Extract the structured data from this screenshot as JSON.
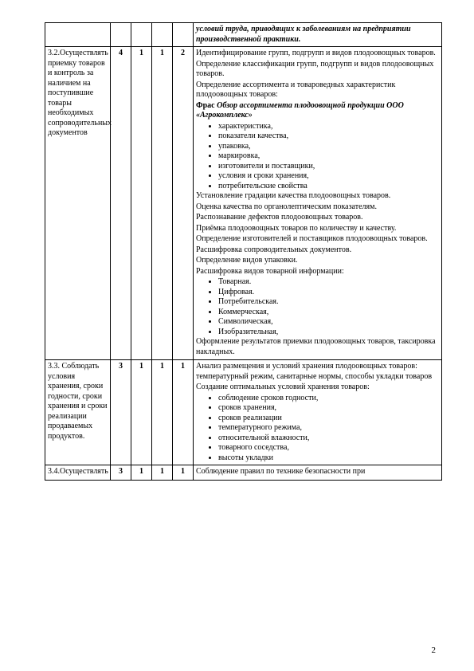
{
  "page_number": "2",
  "row0": {
    "col6_italic": "условий труда, приводящих к заболеваниям на предприятии производственной практики."
  },
  "row1": {
    "col1": "3.2.Осуществлять приемку товаров и контроль за наличием на поступившие товары необходимых сопроводительных документов",
    "col2": "4",
    "col3": "1",
    "col4": "1",
    "col5": "2",
    "p1": "Идентифицирование групп, подгрупп и видов плодоовощных  товаров.",
    "p2": "Определение классификации групп, подгрупп и видов плодоовощных  товаров.",
    "p3": "Определение ассортимента и товароведных характеристик плодоовощных  товаров:",
    "p4a_bold": "Фрас ",
    "p4b_italic": "Обзор ассортимента  плодоовощной продукции ООО «Агрокомплекс»",
    "b1": "характеристика,",
    "b2": "показатели качества,",
    "b3": "упаковка,",
    "b4": "маркировка,",
    "b5": " изготовители и поставщики,",
    "b6": "условия и сроки хранения,",
    "b7": " потребительские свойства",
    "p5": "Установление градации качества плодоовощных товаров.",
    "p6": "Оценка качества по органолептическим показателям.",
    "p7": "Распознавание дефектов плодоовощных товаров.",
    "p8": "Приёмка плодоовощных  товаров по количеству и качеству.",
    "p9": "Определение изготовителей и поставщиков плодоовощных  товаров.",
    "p10": "Расшифровка сопроводительных документов.",
    "p11": "Определение видов упаковки.",
    "p12": " Расшифровка видов товарной информации:",
    "c1": "Товарная.",
    "c2": "Цифровая.",
    "c3": "Потребительская.",
    "c4": "Коммерческая,",
    "c5": "Символическая,",
    "c6": "Изобразительная,",
    "p13": "Оформление результатов приемки плодоовощных  товаров, таксировка накладных."
  },
  "row2": {
    "col1": "3.3. Соблюдать условия хранения, сроки годности, сроки хранения и сроки реализации продаваемых продуктов.",
    "col2": "3",
    "col3": "1",
    "col4": "1",
    "col5": "1",
    "p1": "Анализ размещения и условий хранения плодоовощных  товаров: температурный режим, санитарные нормы, способы укладки товаров",
    "p2": "Создание оптимальных условий хранения товаров:",
    "b1": "соблюдение сроков годности,",
    "b2": "сроков хранения,",
    "b3": "сроков реализации",
    "b4": "температурного режима,",
    "b5": "относительной влажности,",
    "b6": "товарного соседства,",
    "b7": " высоты укладки"
  },
  "row3": {
    "col1": "3.4.Осуществлять",
    "col2": "3",
    "col3": "1",
    "col4": "1",
    "col5": "1",
    "p1": "Соблюдение правил по технике безопасности при"
  }
}
